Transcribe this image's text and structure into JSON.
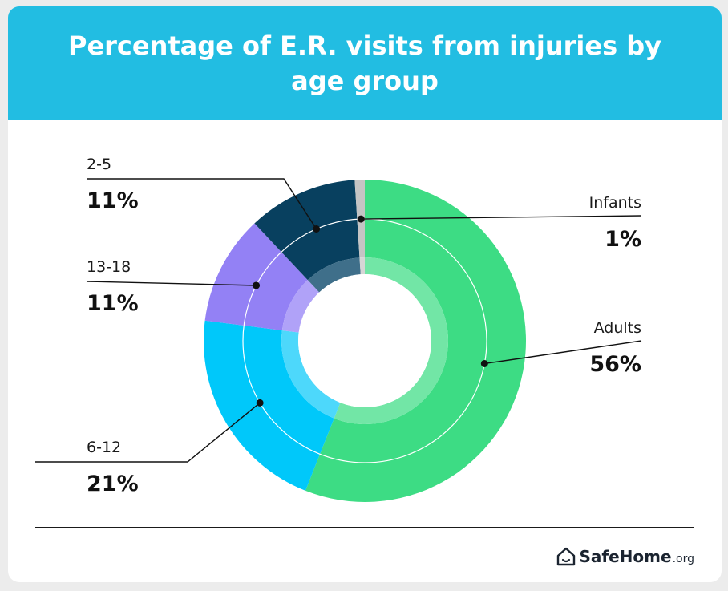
{
  "header": {
    "title": "Percentage of E.R. visits from injuries by age group"
  },
  "chart_data": {
    "type": "pie",
    "title": "Percentage of E.R. visits from injuries by age group",
    "start_angle_deg": 0,
    "direction": "clockwise",
    "segments": [
      {
        "name": "Adults",
        "value": 56,
        "display": "56%",
        "color": "#3ddc84",
        "inner_color": "#72e6a6"
      },
      {
        "name": "6-12",
        "value": 21,
        "display": "21%",
        "color": "#00c8fa",
        "inner_color": "#4dd8fb"
      },
      {
        "name": "13-18",
        "value": 11,
        "display": "11%",
        "color": "#9381f5",
        "inner_color": "#b0a2f8"
      },
      {
        "name": "2-5",
        "value": 11,
        "display": "11%",
        "color": "#08405f",
        "inner_color": "#3f6f8a"
      },
      {
        "name": "Infants",
        "value": 1,
        "display": "1%",
        "color": "#c4c4c4",
        "inner_color": "#d6d6d6"
      }
    ]
  },
  "footer": {
    "brand_name": "SafeHome",
    "brand_tld": ".org"
  }
}
